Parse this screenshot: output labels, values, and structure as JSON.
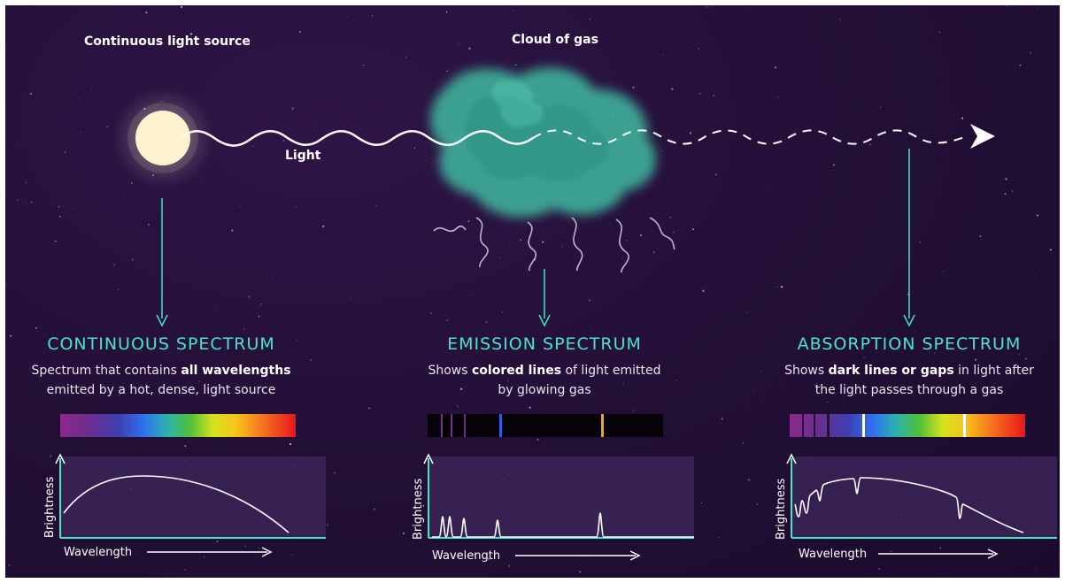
{
  "source": {
    "label": "Continuous light source",
    "light_label": "Light"
  },
  "gas": {
    "label": "Cloud of gas"
  },
  "panels": [
    {
      "title": "CONTINUOUS SPECTRUM",
      "desc_pre": "Spectrum that contains ",
      "desc_bold": "all wavelengths",
      "desc_post": "emitted by a hot, dense, light source",
      "y_label": "Brightness",
      "x_label": "Wavelength"
    },
    {
      "title": "EMISSION SPECTRUM",
      "desc_pre": "Shows ",
      "desc_bold": "colored lines",
      "desc_mid": " of light emitted",
      "desc_post": "by glowing gas",
      "y_label": "Brightness",
      "x_label": "Wavelength"
    },
    {
      "title": "ABSORPTION SPECTRUM",
      "desc_pre": "Shows ",
      "desc_bold": "dark lines or gaps",
      "desc_mid": " in light after",
      "desc_post": "the light passes through a gas",
      "y_label": "Brightness",
      "x_label": "Wavelength"
    }
  ],
  "colors": {
    "accent": "#49e3c8",
    "background": "#241038",
    "gas": "#3fb9a0"
  }
}
